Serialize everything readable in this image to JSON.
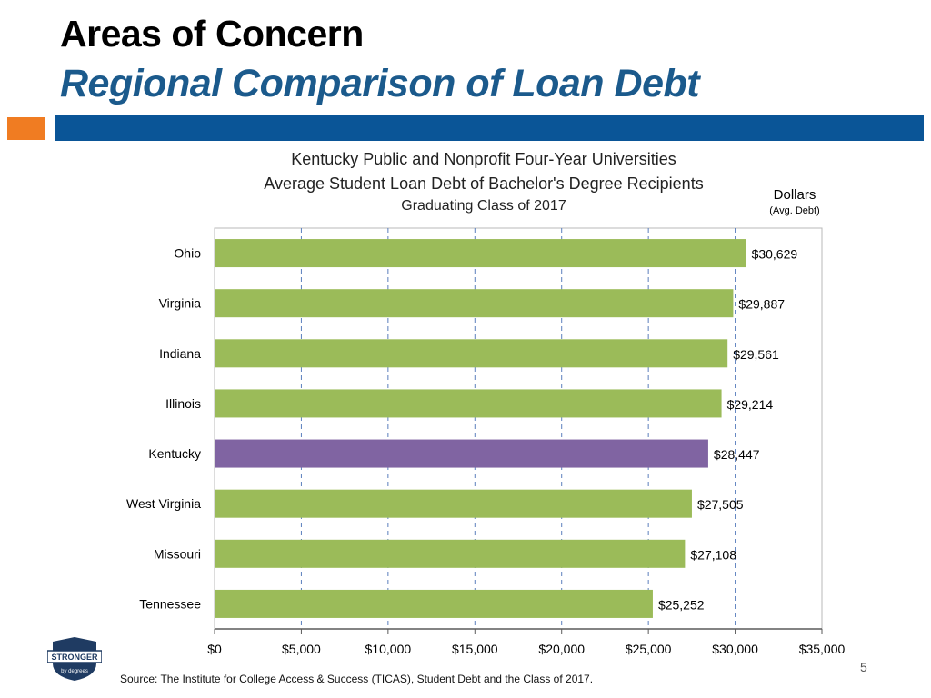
{
  "slide": {
    "title": "Areas of Concern",
    "subtitle": "Regional Comparison of Loan Debt",
    "page_number": "5",
    "source": "Source:   The Institute for College Access & Success (TICAS), Student Debt and the Class of 2017.",
    "logo_text_top": "STRONGER",
    "logo_text_bottom": "by degrees"
  },
  "colors": {
    "title_blue": "#1b5a8c",
    "band_blue": "#0a5597",
    "orange": "#f07c22",
    "bar_green": "#9bbb59",
    "bar_purple": "#8064a2",
    "grid_blue": "#5b7fbd",
    "logo_navy": "#1f3b62"
  },
  "chart_data": {
    "type": "bar",
    "orientation": "horizontal",
    "title_lines": [
      "Kentucky Public and Nonprofit Four-Year Universities",
      "Average Student Loan Debt of Bachelor's Degree Recipients",
      "Graduating  Class of 2017"
    ],
    "unit_label": "Dollars",
    "unit_sublabel": "(Avg. Debt)",
    "categories": [
      "Ohio",
      "Virginia",
      "Indiana",
      "Illinois",
      "Kentucky",
      "West Virginia",
      "Missouri",
      "Tennessee"
    ],
    "values": [
      30629,
      29887,
      29561,
      29214,
      28447,
      27505,
      27108,
      25252
    ],
    "value_labels": [
      "$30,629",
      "$29,887",
      "$29,561",
      "$29,214",
      "$28,447",
      "$27,505",
      "$27,108",
      "$25,252"
    ],
    "highlight": "Kentucky",
    "xlim": [
      0,
      35000
    ],
    "x_ticks": [
      0,
      5000,
      10000,
      15000,
      20000,
      25000,
      30000,
      35000
    ],
    "x_tick_labels": [
      "$0",
      "$5,000",
      "$10,000",
      "$15,000",
      "$20,000",
      "$25,000",
      "$30,000",
      "$35,000"
    ],
    "grid": "vertical dashed"
  }
}
